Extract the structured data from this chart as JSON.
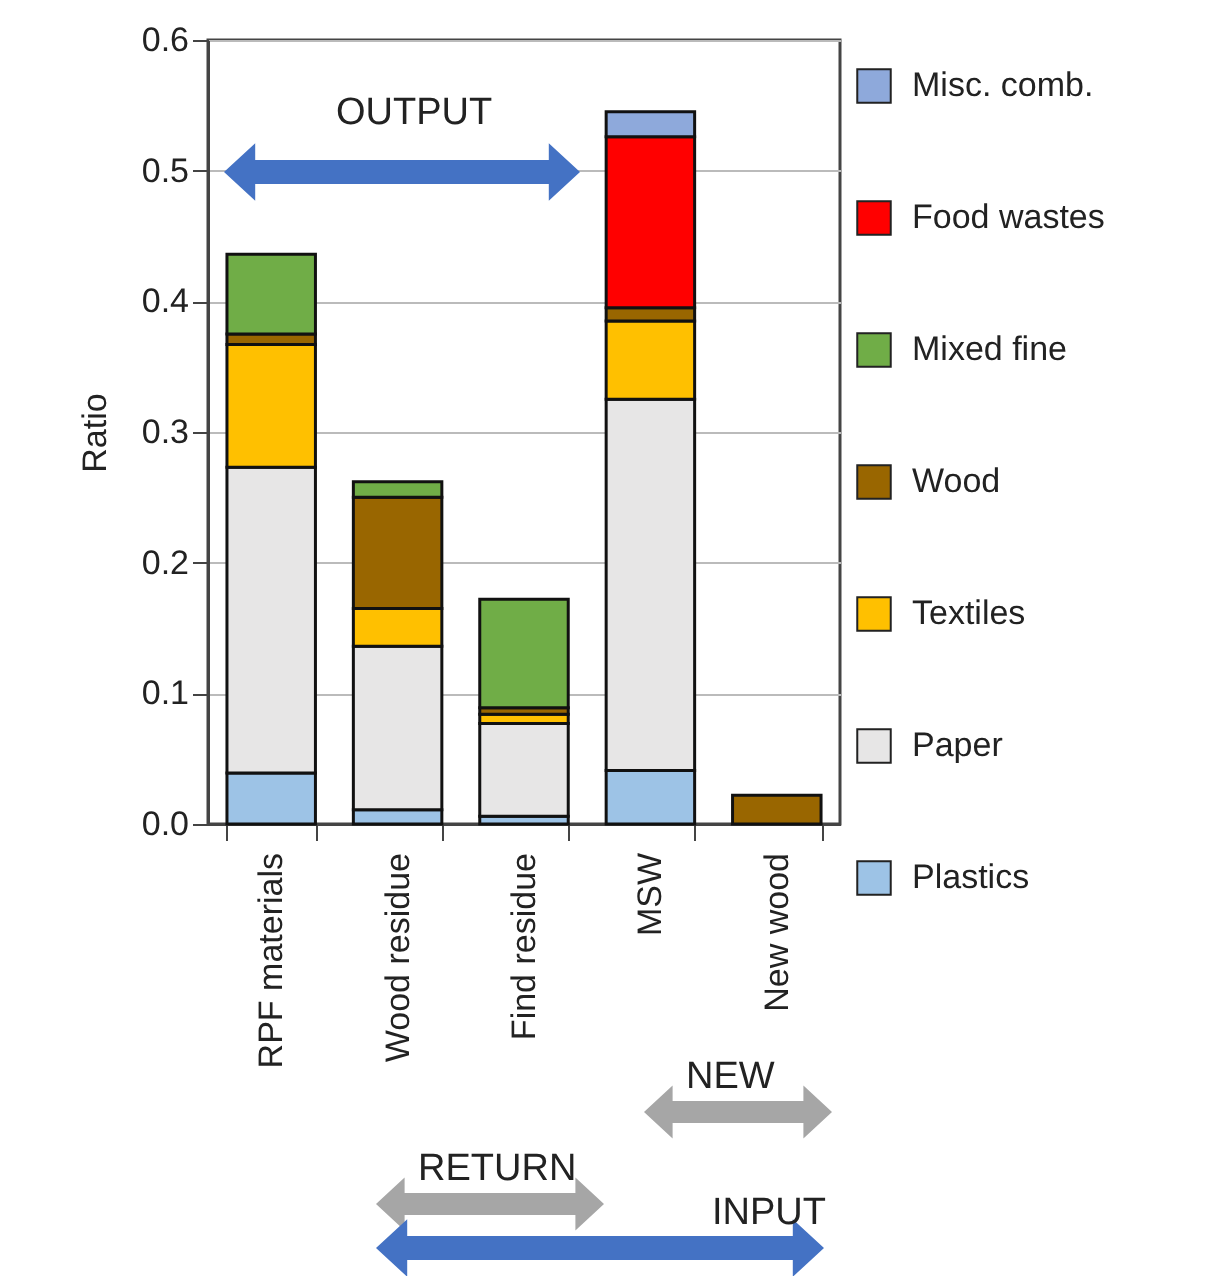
{
  "chart_data": {
    "type": "bar",
    "stacked": true,
    "ylabel": "Ratio",
    "categories": [
      "RPF materials",
      "Wood residue",
      "Find residue",
      "MSW",
      "New wood"
    ],
    "series": [
      {
        "name": "Plastics",
        "color": "#9dc3e6",
        "values": [
          0.039,
          0.011,
          0.006,
          0.041,
          null
        ]
      },
      {
        "name": "Paper",
        "color": "#e7e6e6",
        "values": [
          0.234,
          0.125,
          0.071,
          0.284,
          null
        ]
      },
      {
        "name": "Textiles",
        "color": "#ffc000",
        "values": [
          0.094,
          0.029,
          0.007,
          0.06,
          null
        ]
      },
      {
        "name": "Wood",
        "color": "#996600",
        "values": [
          0.008,
          0.085,
          0.005,
          0.01,
          0.022
        ]
      },
      {
        "name": "Mixed fine",
        "color": "#70ad47",
        "values": [
          0.061,
          0.012,
          0.083,
          null,
          null
        ]
      },
      {
        "name": "Food wastes",
        "color": "#ff0000",
        "values": [
          null,
          null,
          null,
          0.131,
          null
        ]
      },
      {
        "name": "Misc. comb.",
        "color": "#8ea9db",
        "values": [
          null,
          null,
          null,
          0.019,
          null
        ]
      }
    ],
    "ylim": [
      0,
      0.6
    ],
    "yticks": [
      {
        "value": 0,
        "label": "0.0"
      },
      {
        "value": 0.1,
        "label": "0.1"
      },
      {
        "value": 0.2,
        "label": "0.2"
      },
      {
        "value": 0.3,
        "label": "0.3"
      },
      {
        "value": 0.4,
        "label": "0.4"
      },
      {
        "value": 0.5,
        "label": "0.5"
      },
      {
        "value": 0.6,
        "label": "0.6"
      }
    ],
    "grid": "y",
    "legend": "right",
    "annotations": [
      "OUTPUT",
      "NEW",
      "RETURN",
      "INPUT"
    ]
  }
}
